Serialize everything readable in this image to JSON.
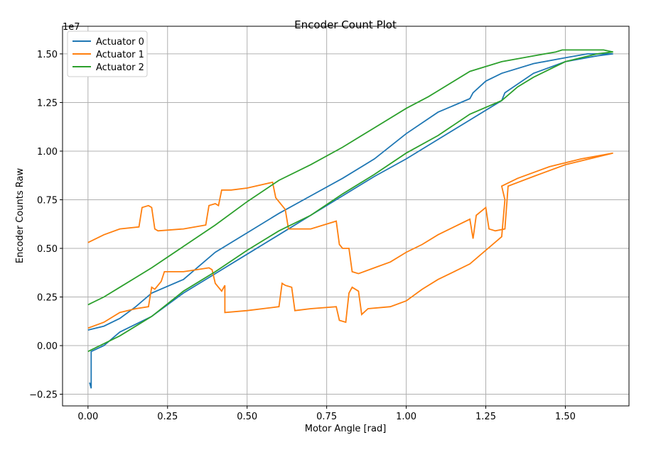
{
  "chart_data": {
    "type": "line",
    "title": "Encoder Count Plot",
    "xlabel": "Motor Angle [rad]",
    "ylabel": "Encoder Counts Raw",
    "y_offset_label": "1e7",
    "xlim": [
      -0.08,
      1.7
    ],
    "ylim": [
      -0.31,
      1.642
    ],
    "grid": true,
    "legend": "upper left",
    "xticks": [
      {
        "value": 0,
        "label": "0.00"
      },
      {
        "value": 0.25,
        "label": "0.25"
      },
      {
        "value": 0.5,
        "label": "0.50"
      },
      {
        "value": 0.75,
        "label": "0.75"
      },
      {
        "value": 1,
        "label": "1.00"
      },
      {
        "value": 1.25,
        "label": "1.25"
      },
      {
        "value": 1.5,
        "label": "1.50"
      }
    ],
    "yticks": [
      {
        "value": -0.25,
        "label": "−0.25"
      },
      {
        "value": 0,
        "label": "0.00"
      },
      {
        "value": 0.25,
        "label": "0.25"
      },
      {
        "value": 0.5,
        "label": "0.50"
      },
      {
        "value": 0.75,
        "label": "0.75"
      },
      {
        "value": 1,
        "label": "1.00"
      },
      {
        "value": 1.25,
        "label": "1.25"
      },
      {
        "value": 1.5,
        "label": "1.50"
      }
    ],
    "series": [
      {
        "name": "Actuator 0",
        "color": "#1f77b4",
        "x": [
          0.005,
          0.01,
          0.01,
          0.05,
          0.1,
          0.2,
          0.3,
          0.4,
          0.5,
          0.6,
          0.7,
          0.8,
          0.9,
          1.0,
          1.1,
          1.2,
          1.3,
          1.31,
          1.4,
          1.5,
          1.6,
          1.65,
          1.57,
          1.5,
          1.4,
          1.3,
          1.25,
          1.21,
          1.2,
          1.1,
          1.0,
          0.9,
          0.8,
          0.7,
          0.6,
          0.5,
          0.4,
          0.3,
          0.2,
          0.15,
          0.1,
          0.05,
          0.0
        ],
        "y": [
          -0.19,
          -0.22,
          -0.03,
          0.0,
          0.07,
          0.15,
          0.27,
          0.37,
          0.47,
          0.57,
          0.67,
          0.77,
          0.87,
          0.96,
          1.06,
          1.16,
          1.26,
          1.3,
          1.4,
          1.46,
          1.49,
          1.5,
          1.5,
          1.48,
          1.45,
          1.4,
          1.36,
          1.3,
          1.27,
          1.2,
          1.09,
          0.96,
          0.86,
          0.77,
          0.68,
          0.58,
          0.48,
          0.34,
          0.27,
          0.2,
          0.14,
          0.1,
          0.08
        ]
      },
      {
        "name": "Actuator 1",
        "color": "#ff7f0e",
        "x": [
          0.0,
          0.05,
          0.1,
          0.16,
          0.17,
          0.19,
          0.2,
          0.21,
          0.22,
          0.3,
          0.37,
          0.38,
          0.4,
          0.41,
          0.42,
          0.45,
          0.5,
          0.58,
          0.59,
          0.62,
          0.63,
          0.7,
          0.78,
          0.79,
          0.8,
          0.82,
          0.83,
          0.85,
          0.9,
          0.95,
          1.0,
          1.05,
          1.1,
          1.15,
          1.2,
          1.21,
          1.22,
          1.25,
          1.26,
          1.28,
          1.31,
          1.32,
          1.4,
          1.5,
          1.65,
          1.55,
          1.45,
          1.35,
          1.3,
          1.31,
          1.3,
          1.2,
          1.15,
          1.1,
          1.05,
          1.0,
          0.95,
          0.88,
          0.86,
          0.85,
          0.83,
          0.82,
          0.81,
          0.79,
          0.78,
          0.7,
          0.65,
          0.64,
          0.62,
          0.61,
          0.6,
          0.5,
          0.43,
          0.43,
          0.42,
          0.4,
          0.39,
          0.38,
          0.3,
          0.24,
          0.23,
          0.22,
          0.21,
          0.2,
          0.19,
          0.15,
          0.1,
          0.05,
          0.0
        ],
        "y": [
          0.53,
          0.57,
          0.6,
          0.61,
          0.71,
          0.72,
          0.71,
          0.6,
          0.59,
          0.6,
          0.62,
          0.72,
          0.73,
          0.72,
          0.8,
          0.8,
          0.81,
          0.84,
          0.76,
          0.7,
          0.6,
          0.6,
          0.64,
          0.52,
          0.5,
          0.5,
          0.38,
          0.37,
          0.4,
          0.43,
          0.48,
          0.52,
          0.57,
          0.61,
          0.65,
          0.55,
          0.67,
          0.71,
          0.6,
          0.59,
          0.6,
          0.82,
          0.87,
          0.93,
          0.99,
          0.96,
          0.92,
          0.86,
          0.82,
          0.75,
          0.56,
          0.42,
          0.38,
          0.34,
          0.29,
          0.23,
          0.2,
          0.19,
          0.16,
          0.28,
          0.3,
          0.27,
          0.12,
          0.13,
          0.2,
          0.19,
          0.18,
          0.3,
          0.31,
          0.32,
          0.2,
          0.18,
          0.17,
          0.31,
          0.28,
          0.32,
          0.39,
          0.4,
          0.38,
          0.38,
          0.33,
          0.31,
          0.29,
          0.3,
          0.2,
          0.19,
          0.17,
          0.12,
          0.09
        ]
      },
      {
        "name": "Actuator 2",
        "color": "#2ca02c",
        "x": [
          0.0,
          0.1,
          0.2,
          0.3,
          0.4,
          0.5,
          0.6,
          0.7,
          0.8,
          0.9,
          1.0,
          1.1,
          1.2,
          1.3,
          1.35,
          1.4,
          1.5,
          1.6,
          1.65,
          1.62,
          1.6,
          1.49,
          1.47,
          1.4,
          1.3,
          1.2,
          1.1,
          1.07,
          1.0,
          0.9,
          0.8,
          0.7,
          0.6,
          0.5,
          0.4,
          0.3,
          0.2,
          0.15,
          0.1,
          0.05,
          0.0
        ],
        "y": [
          -0.03,
          0.05,
          0.15,
          0.28,
          0.38,
          0.49,
          0.59,
          0.67,
          0.78,
          0.88,
          0.99,
          1.08,
          1.19,
          1.26,
          1.33,
          1.38,
          1.46,
          1.5,
          1.51,
          1.52,
          1.52,
          1.52,
          1.51,
          1.49,
          1.46,
          1.41,
          1.31,
          1.28,
          1.22,
          1.12,
          1.02,
          0.93,
          0.85,
          0.74,
          0.62,
          0.51,
          0.4,
          0.35,
          0.3,
          0.25,
          0.21
        ]
      }
    ]
  }
}
